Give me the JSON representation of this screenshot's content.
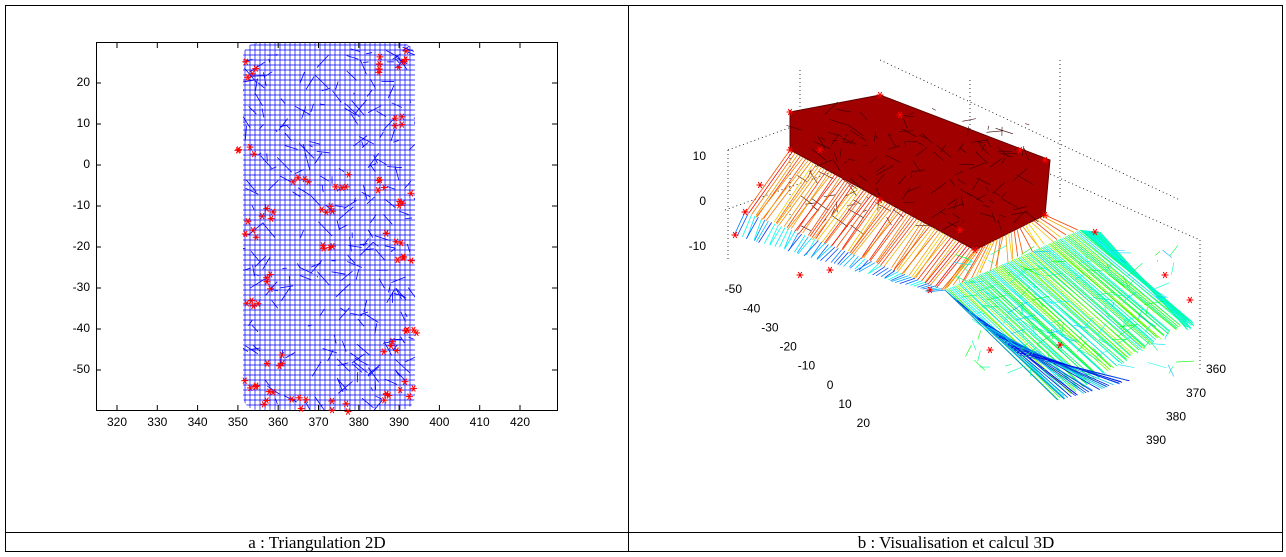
{
  "panel_a": {
    "xticks": [
      320,
      330,
      340,
      350,
      360,
      370,
      380,
      390,
      400,
      410,
      420
    ],
    "yticks": [
      20,
      10,
      0,
      -10,
      -20,
      -30,
      -40,
      -50
    ]
  },
  "panel_b": {
    "z_ticks": [
      10,
      0,
      -10
    ],
    "x_ticks": [
      -50,
      -40,
      -30,
      -20,
      -10,
      0,
      10,
      20
    ],
    "y_ticks": [
      360,
      370,
      380,
      390
    ]
  },
  "captions": [
    "a : Triangulation 2D",
    "b : Visualisation et calcul 3D"
  ]
}
